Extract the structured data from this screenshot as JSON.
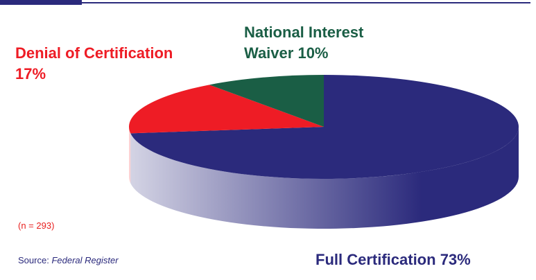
{
  "chart_data": {
    "type": "pie",
    "categories": [
      "Full Certification",
      "Denial of Certification",
      "National Interest Waiver"
    ],
    "values": [
      73,
      17,
      10
    ],
    "value_labels": [
      "73%",
      "17%",
      "10%"
    ],
    "colors": [
      "#2b2a7c",
      "#ee1c25",
      "#1a5e45"
    ],
    "note": "(n = 293)",
    "source_label": "Source:",
    "source": "Federal Register"
  }
}
